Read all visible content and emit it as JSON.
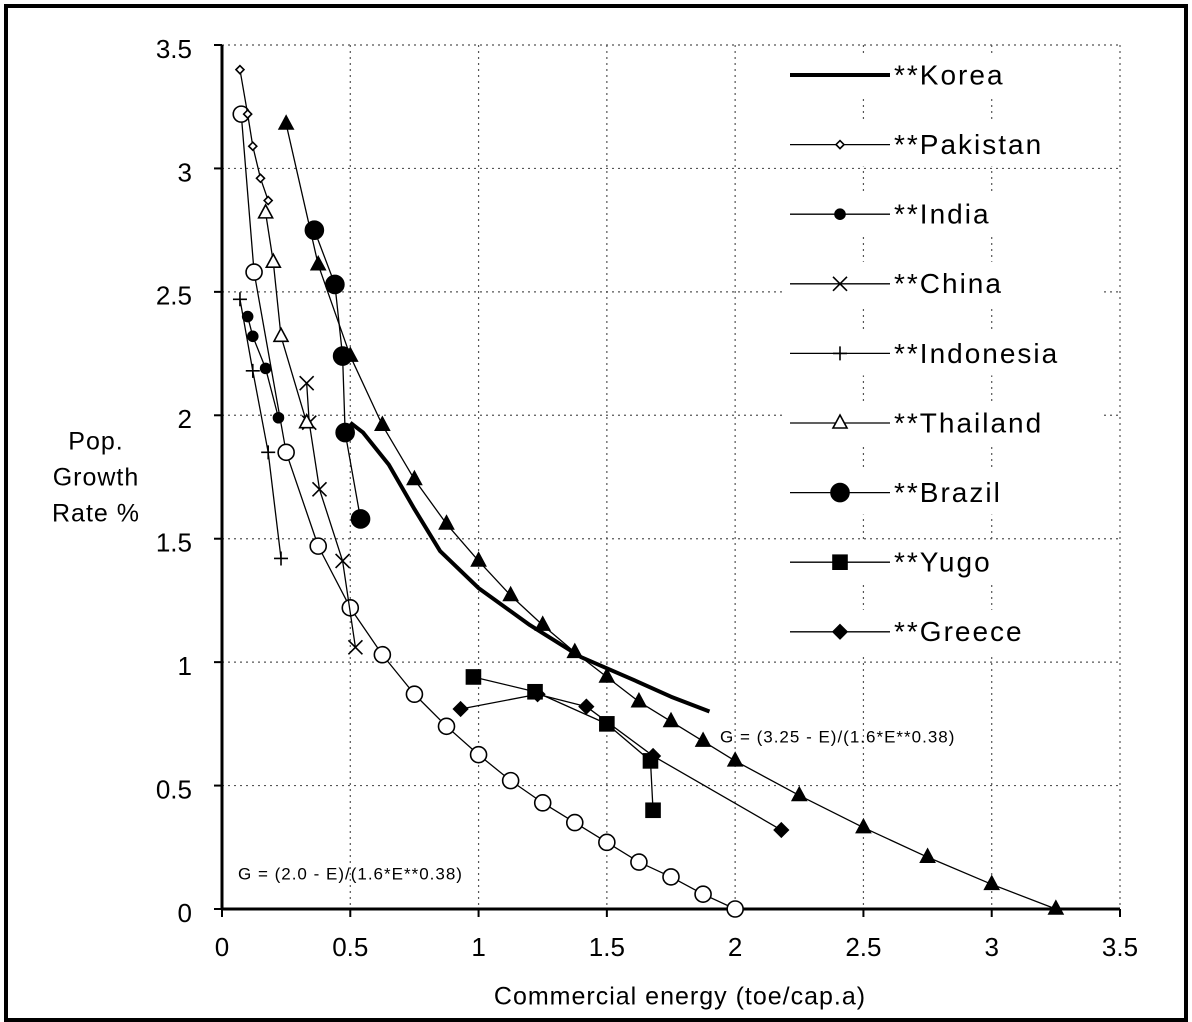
{
  "chart_data": {
    "type": "line",
    "xlabel": "Commercial energy (toe/cap.a)",
    "ylabel": [
      "Pop.",
      "Growth",
      "Rate %"
    ],
    "xlim": [
      0,
      3.5
    ],
    "ylim": [
      0,
      3.5
    ],
    "xticks": [
      0,
      0.5,
      1,
      1.5,
      2,
      2.5,
      3,
      3.5
    ],
    "yticks": [
      0,
      0.5,
      1,
      1.5,
      2,
      2.5,
      3,
      3.5
    ],
    "grid": true,
    "legend": "upper right",
    "series": [
      {
        "name": "**Korea",
        "color": "#000000",
        "marker": "none",
        "line_width": 4,
        "x": [
          0.5,
          0.55,
          0.65,
          0.75,
          0.85,
          1.0,
          1.2,
          1.4,
          1.6,
          1.75,
          1.9
        ],
        "values": [
          1.97,
          1.93,
          1.8,
          1.62,
          1.45,
          1.3,
          1.15,
          1.02,
          0.93,
          0.86,
          0.8
        ]
      },
      {
        "name": "**Pakistan",
        "color": "#000000",
        "marker": "small-diamond",
        "line_width": 1.3,
        "x": [
          0.07,
          0.1,
          0.12,
          0.15,
          0.18
        ],
        "values": [
          3.4,
          3.22,
          3.09,
          2.96,
          2.87
        ]
      },
      {
        "name": "**India",
        "color": "#000000",
        "marker": "dot",
        "line_width": 1.3,
        "x": [
          0.1,
          0.12,
          0.17,
          0.22
        ],
        "values": [
          2.4,
          2.32,
          2.19,
          1.99
        ]
      },
      {
        "name": "**China",
        "color": "#000000",
        "marker": "x",
        "line_width": 1.3,
        "x": [
          0.33,
          0.34,
          0.38,
          0.47,
          0.52
        ],
        "values": [
          2.13,
          1.97,
          1.7,
          1.41,
          1.06
        ]
      },
      {
        "name": "**Indonesia",
        "color": "#000000",
        "marker": "plus",
        "line_width": 1.3,
        "x": [
          0.07,
          0.12,
          0.18,
          0.23
        ],
        "values": [
          2.47,
          2.18,
          1.85,
          1.42
        ]
      },
      {
        "name": "**Thailand",
        "color": "#000000",
        "marker": "open-triangle",
        "line_width": 1.3,
        "x": [
          0.17,
          0.2,
          0.23,
          0.33
        ],
        "values": [
          2.82,
          2.62,
          2.32,
          1.97
        ]
      },
      {
        "name": "**Brazil",
        "color": "#000000",
        "marker": "big-dot",
        "line_width": 1.3,
        "x": [
          0.36,
          0.44,
          0.47,
          0.48,
          0.54
        ],
        "values": [
          2.75,
          2.53,
          2.24,
          1.93,
          1.58
        ]
      },
      {
        "name": "**Yugo",
        "color": "#000000",
        "marker": "square",
        "line_width": 1.3,
        "x": [
          0.98,
          1.22,
          1.5,
          1.67,
          1.68
        ],
        "values": [
          0.94,
          0.88,
          0.75,
          0.6,
          0.4
        ]
      },
      {
        "name": "**Greece",
        "color": "#000000",
        "marker": "diamond",
        "line_width": 1.3,
        "x": [
          0.93,
          1.23,
          1.42,
          1.68,
          2.18
        ],
        "values": [
          0.81,
          0.87,
          0.82,
          0.62,
          0.32
        ]
      }
    ],
    "curves": [
      {
        "label": "G = (3.25 - E)/(1.6*E**0.38)",
        "color": "#000000",
        "marker": "filled-triangle",
        "x": [
          0.25,
          0.375,
          0.5,
          0.625,
          0.75,
          0.875,
          1.0,
          1.125,
          1.25,
          1.375,
          1.5,
          1.625,
          1.75,
          1.875,
          2.0,
          2.25,
          2.5,
          2.75,
          3.0,
          3.25
        ],
        "values": [
          3.18,
          2.61,
          2.24,
          1.96,
          1.74,
          1.56,
          1.41,
          1.27,
          1.15,
          1.04,
          0.94,
          0.84,
          0.76,
          0.68,
          0.6,
          0.46,
          0.33,
          0.21,
          0.1,
          0
        ]
      },
      {
        "label": "G = (2.0 - E)/(1.6*E**0.38)",
        "color": "#000000",
        "marker": "open-circle",
        "x": [
          0.075,
          0.125,
          0.25,
          0.375,
          0.5,
          0.625,
          0.75,
          0.875,
          1.0,
          1.125,
          1.25,
          1.375,
          1.5,
          1.625,
          1.75,
          1.875,
          2.0
        ],
        "values": [
          3.22,
          2.58,
          1.85,
          1.47,
          1.22,
          1.03,
          0.87,
          0.74,
          0.625,
          0.52,
          0.43,
          0.35,
          0.27,
          0.19,
          0.13,
          0.06,
          0
        ]
      }
    ]
  }
}
